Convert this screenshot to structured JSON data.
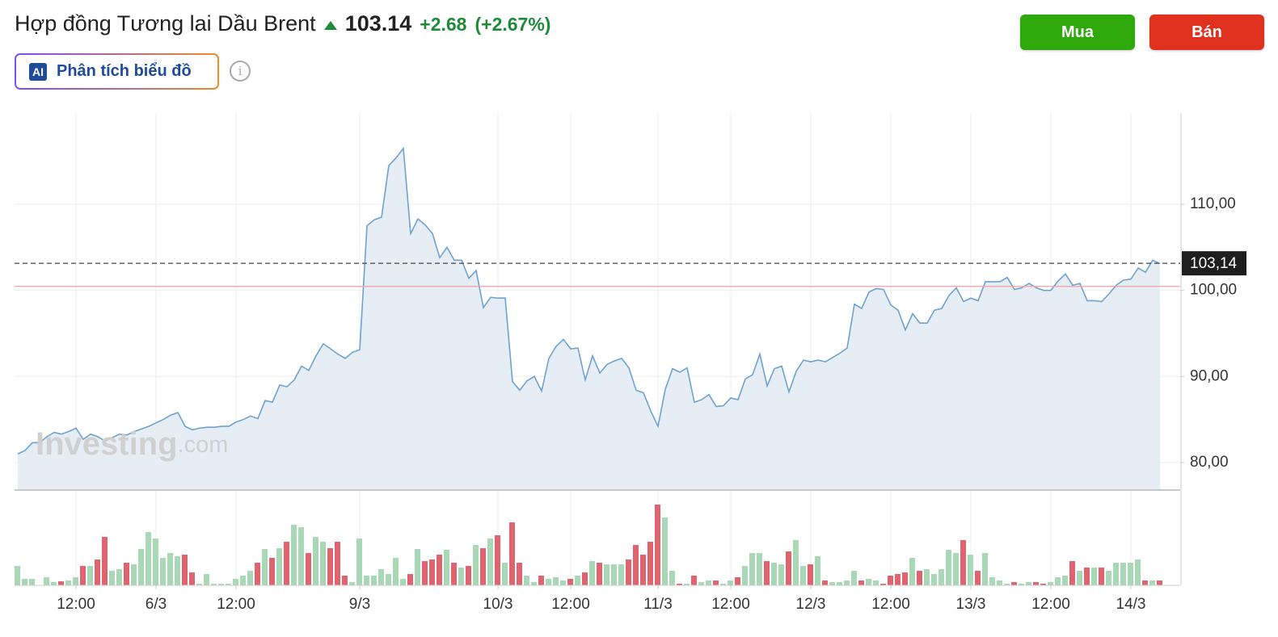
{
  "header": {
    "title": "Hợp đồng Tương lai Dầu Brent",
    "price": "103.14",
    "change": "+2.68",
    "change_pct": "(+2.67%)"
  },
  "buttons": {
    "buy": "Mua",
    "sell": "Bán"
  },
  "ai_button": {
    "badge": "AI",
    "label": "Phân tích biểu đồ"
  },
  "watermark": {
    "brand": "Investing",
    "suffix": ".com"
  },
  "chart_data": {
    "type": "area",
    "categories": [
      null,
      null,
      null,
      null,
      null,
      null,
      null,
      null,
      "12:00",
      null,
      null,
      null,
      null,
      null,
      null,
      null,
      null,
      null,
      null,
      "6/3",
      null,
      null,
      null,
      null,
      null,
      null,
      null,
      null,
      null,
      null,
      "12:00",
      null,
      null,
      null,
      null,
      null,
      null,
      null,
      null,
      null,
      null,
      null,
      null,
      null,
      null,
      null,
      null,
      "9/3",
      null,
      null,
      null,
      null,
      null,
      null,
      null,
      null,
      null,
      null,
      null,
      null,
      null,
      null,
      null,
      null,
      null,
      null,
      "10/3",
      null,
      null,
      null,
      null,
      null,
      null,
      null,
      null,
      null,
      "12:00",
      null,
      null,
      null,
      null,
      null,
      null,
      null,
      null,
      null,
      null,
      null,
      "11/3",
      null,
      null,
      null,
      null,
      null,
      null,
      null,
      null,
      null,
      "12:00",
      null,
      null,
      null,
      null,
      null,
      null,
      null,
      null,
      null,
      null,
      "12/3",
      null,
      null,
      null,
      null,
      null,
      null,
      null,
      null,
      null,
      null,
      "12:00",
      null,
      null,
      null,
      null,
      null,
      null,
      null,
      null,
      null,
      null,
      "13/3",
      null,
      null,
      null,
      null,
      null,
      null,
      null,
      null,
      null,
      null,
      "12:00",
      null,
      null,
      null,
      null,
      null,
      null,
      null,
      null,
      null,
      null,
      "14/3",
      null,
      null,
      null,
      null
    ],
    "series": [
      {
        "type": "area",
        "color": "#6ea2d0",
        "fill_color": "#e6edf5",
        "values": [
          81.0,
          81.4,
          82.3,
          82.3,
          83.0,
          83.5,
          83.3,
          83.6,
          84.0,
          82.7,
          83.3,
          83.0,
          82.5,
          82.9,
          83.3,
          83.2,
          83.6,
          83.9,
          84.2,
          84.6,
          85.0,
          85.5,
          85.8,
          84.2,
          83.8,
          84.0,
          84.1,
          84.1,
          84.2,
          84.2,
          84.7,
          85.0,
          85.4,
          85.1,
          87.2,
          87.0,
          89.0,
          88.8,
          89.6,
          91.2,
          90.7,
          92.4,
          93.8,
          93.2,
          92.6,
          92.1,
          92.8,
          93.1,
          107.5,
          108.2,
          108.5,
          114.5,
          115.4,
          116.5,
          106.6,
          108.3,
          107.6,
          106.6,
          103.8,
          105.0,
          103.5,
          103.5,
          101.4,
          102.3,
          98.0,
          99.2,
          99.1,
          99.1,
          89.4,
          88.4,
          89.5,
          90.0,
          88.3,
          92.1,
          93.5,
          94.3,
          93.2,
          93.3,
          89.6,
          92.4,
          90.4,
          91.4,
          91.8,
          92.1,
          91.0,
          88.4,
          88.1,
          86.0,
          84.2,
          88.5,
          90.9,
          90.5,
          91.0,
          87.0,
          87.3,
          87.9,
          86.5,
          86.6,
          87.5,
          87.3,
          89.7,
          90.2,
          92.6,
          88.9,
          90.9,
          91.2,
          88.2,
          90.6,
          91.9,
          91.7,
          91.9,
          91.7,
          92.2,
          92.7,
          93.3,
          98.4,
          97.9,
          99.8,
          100.2,
          100.1,
          98.3,
          97.7,
          95.4,
          97.3,
          96.2,
          96.2,
          97.7,
          97.9,
          99.4,
          100.3,
          98.7,
          99.1,
          98.8,
          101.0,
          101.0,
          101.0,
          101.5,
          100.1,
          100.3,
          100.8,
          100.3,
          100.0,
          100.0,
          101.1,
          101.9,
          100.6,
          100.8,
          98.8,
          98.8,
          98.7,
          99.6,
          100.6,
          101.2,
          101.3,
          102.6,
          102.1,
          103.5,
          103.1
        ]
      },
      {
        "type": "bar",
        "axis": "y2",
        "up_color": "#a8d8b5",
        "down_color": "#e06470",
        "values": [
          24,
          8,
          8,
          0,
          10,
          4,
          5,
          6,
          10,
          24,
          24,
          32,
          60,
          18,
          20,
          28,
          26,
          45,
          66,
          58,
          34,
          40,
          36,
          38,
          16,
          2,
          14,
          2,
          2,
          2,
          8,
          12,
          18,
          28,
          45,
          34,
          46,
          54,
          75,
          72,
          40,
          60,
          54,
          46,
          54,
          12,
          4,
          58,
          12,
          12,
          20,
          14,
          34,
          8,
          14,
          45,
          30,
          32,
          38,
          44,
          28,
          22,
          24,
          50,
          46,
          58,
          62,
          28,
          78,
          28,
          12,
          4,
          12,
          8,
          10,
          6,
          8,
          12,
          16,
          30,
          28,
          26,
          26,
          26,
          32,
          50,
          38,
          54,
          100,
          84,
          18,
          2,
          2,
          12,
          4,
          6,
          6,
          2,
          6,
          10,
          24,
          40,
          40,
          30,
          28,
          26,
          42,
          56,
          24,
          26,
          36,
          6,
          4,
          4,
          6,
          18,
          6,
          8,
          6,
          2,
          12,
          14,
          16,
          34,
          18,
          20,
          14,
          20,
          44,
          40,
          56,
          38,
          18,
          40,
          10,
          6,
          2,
          4,
          2,
          4,
          4,
          2,
          4,
          10,
          12,
          30,
          18,
          22,
          22,
          22,
          18,
          28,
          28,
          28,
          32,
          6,
          6,
          6
        ]
      }
    ],
    "ylim": [
      76.8,
      120.6
    ],
    "yticks": [
      {
        "value": 80,
        "label": "80,00"
      },
      {
        "value": 90,
        "label": "90,00"
      },
      {
        "value": 100,
        "label": "100,00"
      },
      {
        "value": 110,
        "label": "110,00"
      }
    ],
    "y2lim": [
      0,
      100
    ],
    "grid": true,
    "last_price": {
      "value": 103.14,
      "label": "103,14"
    },
    "prev_close": 100.46,
    "prev_close_color": "#f4a0a0"
  }
}
